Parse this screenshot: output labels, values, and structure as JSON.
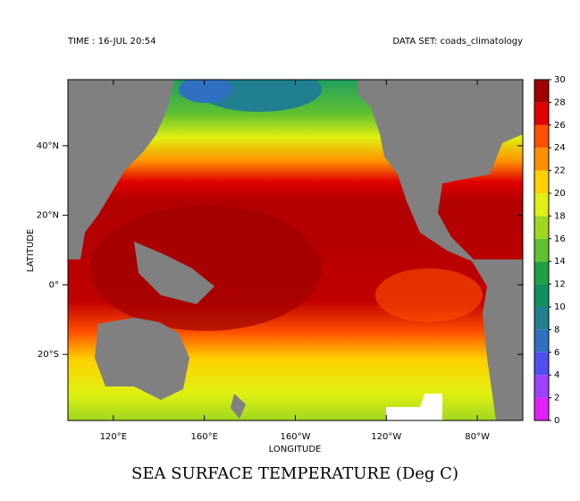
{
  "header": {
    "time": "TIME : 16-JUL 20:54",
    "dataset": "DATA SET: coads_climatology"
  },
  "map": {
    "xlabel": "LONGITUDE",
    "ylabel": "LATITUDE",
    "xlim": [
      100,
      300
    ],
    "ylim": [
      -39,
      59
    ],
    "xticks": [
      {
        "value": 120,
        "label": "120°E"
      },
      {
        "value": 160,
        "label": "160°E"
      },
      {
        "value": 200,
        "label": "160°W"
      },
      {
        "value": 240,
        "label": "120°W"
      },
      {
        "value": 280,
        "label": "80°W"
      }
    ],
    "yticks": [
      {
        "value": 40,
        "label": "40°N"
      },
      {
        "value": 20,
        "label": "20°N"
      },
      {
        "value": 0,
        "label": "0°"
      },
      {
        "value": -20,
        "label": "20°S"
      }
    ]
  },
  "colorbar": {
    "ticks": [
      0,
      2,
      4,
      6,
      8,
      10,
      12,
      14,
      16,
      18,
      20,
      22,
      24,
      26,
      28,
      30
    ],
    "colors": [
      "#e020ff",
      "#a040ff",
      "#5050f0",
      "#3070c0",
      "#208090",
      "#109060",
      "#20a040",
      "#60c030",
      "#a0d820",
      "#e0f010",
      "#ffd000",
      "#ff9000",
      "#ff5000",
      "#e00000",
      "#a00000"
    ]
  },
  "title": "SEA SURFACE TEMPERATURE (Deg C)"
}
